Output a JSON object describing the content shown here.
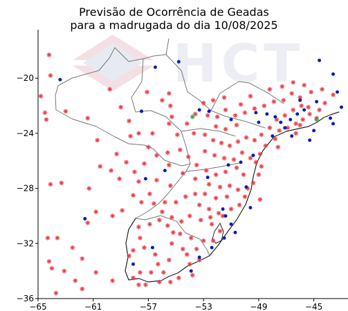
{
  "chart_data": {
    "type": "scatter",
    "title": "Previsão de Ocorrência de Geadas",
    "subtitle": "para a madrugada do dia 10/08/2025",
    "xlim": [
      -65,
      -43
    ],
    "ylim": [
      -36,
      -16.5
    ],
    "x_ticks": [
      -65,
      -61,
      -57,
      -53,
      -49,
      -45
    ],
    "y_ticks": [
      -20,
      -24,
      -28,
      -32,
      -36
    ],
    "grid": false,
    "watermark": "HCT",
    "colors": {
      "frost": "#e8404a",
      "no_frost": "#0a1fb0",
      "green": "#3fa046",
      "border": "#777777",
      "coast": "#222222"
    },
    "series": [
      {
        "marker": "red-asterisk",
        "points": [
          [
            -64.2,
            -18.3
          ],
          [
            -64.1,
            -19.8
          ],
          [
            -64.8,
            -21.3
          ],
          [
            -63.0,
            -22.4
          ],
          [
            -64.5,
            -22.5
          ],
          [
            -64.4,
            -23.0
          ],
          [
            -61.4,
            -22.9
          ],
          [
            -59.8,
            -20.8
          ],
          [
            -57.1,
            -21.0
          ],
          [
            -56.0,
            -21.6
          ],
          [
            -55.4,
            -22.0
          ],
          [
            -55.3,
            -22.8
          ],
          [
            -55.5,
            -23.3
          ],
          [
            -56.7,
            -24.0
          ],
          [
            -57.7,
            -24.0
          ],
          [
            -58.3,
            -24.2
          ],
          [
            -58.4,
            -23.1
          ],
          [
            -59.0,
            -22.1
          ],
          [
            -60.7,
            -24.5
          ],
          [
            -60.5,
            -26.4
          ],
          [
            -59.7,
            -26.7
          ],
          [
            -59.1,
            -27.3
          ],
          [
            -57.7,
            -27.5
          ],
          [
            -58.0,
            -26.8
          ],
          [
            -57.3,
            -26.2
          ],
          [
            -56.4,
            -25.6
          ],
          [
            -55.6,
            -25.4
          ],
          [
            -55.5,
            -26.3
          ],
          [
            -54.5,
            -26.9
          ],
          [
            -53.6,
            -27.3
          ],
          [
            -53.6,
            -28.4
          ],
          [
            -54.3,
            -28.6
          ],
          [
            -55.0,
            -29.0
          ],
          [
            -55.8,
            -29.0
          ],
          [
            -56.6,
            -29.1
          ],
          [
            -57.5,
            -29.0
          ],
          [
            -58.1,
            -28.5
          ],
          [
            -58.9,
            -29.6
          ],
          [
            -59.6,
            -30.0
          ],
          [
            -60.8,
            -29.7
          ],
          [
            -61.4,
            -30.5
          ],
          [
            -61.8,
            -33.1
          ],
          [
            -62.5,
            -32.3
          ],
          [
            -63.6,
            -31.6
          ],
          [
            -64.3,
            -31.6
          ],
          [
            -64.2,
            -33.3
          ],
          [
            -64.0,
            -33.8
          ],
          [
            -63.1,
            -34.0
          ],
          [
            -62.3,
            -34.7
          ],
          [
            -60.8,
            -34.1
          ],
          [
            -59.6,
            -34.7
          ],
          [
            -58.1,
            -34.5
          ],
          [
            -57.2,
            -35.0
          ],
          [
            -56.2,
            -34.8
          ],
          [
            -55.4,
            -34.8
          ],
          [
            -54.8,
            -34.5
          ],
          [
            -54.0,
            -33.5
          ],
          [
            -53.3,
            -33.2
          ],
          [
            -53.5,
            -32.4
          ],
          [
            -53.9,
            -31.6
          ],
          [
            -54.7,
            -31.3
          ],
          [
            -55.6,
            -30.7
          ],
          [
            -56.2,
            -30.3
          ],
          [
            -56.9,
            -30.6
          ],
          [
            -57.7,
            -30.8
          ],
          [
            -57.6,
            -31.6
          ],
          [
            -57.3,
            -32.3
          ],
          [
            -56.5,
            -32.8
          ],
          [
            -56.3,
            -33.5
          ],
          [
            -55.9,
            -34.1
          ],
          [
            -57.6,
            -34.1
          ],
          [
            -58.4,
            -32.9
          ],
          [
            -58.1,
            -32.5
          ],
          [
            -55.3,
            -32.0
          ],
          [
            -54.5,
            -32.4
          ],
          [
            -53.0,
            -31.8
          ],
          [
            -52.4,
            -30.6
          ],
          [
            -51.6,
            -30.0
          ],
          [
            -51.0,
            -29.5
          ],
          [
            -50.4,
            -29.2
          ],
          [
            -50.0,
            -28.6
          ],
          [
            -49.8,
            -28.0
          ],
          [
            -49.4,
            -27.6
          ],
          [
            -49.0,
            -27.0
          ],
          [
            -48.8,
            -26.4
          ],
          [
            -48.9,
            -25.5
          ],
          [
            -48.5,
            -24.9
          ],
          [
            -47.8,
            -24.4
          ],
          [
            -47.5,
            -23.8
          ],
          [
            -46.9,
            -23.6
          ],
          [
            -46.3,
            -23.3
          ],
          [
            -45.8,
            -23.0
          ],
          [
            -45.3,
            -22.6
          ],
          [
            -44.6,
            -22.3
          ],
          [
            -44.2,
            -21.8
          ],
          [
            -43.6,
            -21.2
          ],
          [
            -44.4,
            -20.8
          ],
          [
            -45.2,
            -21.0
          ],
          [
            -46.0,
            -21.4
          ],
          [
            -46.6,
            -21.1
          ],
          [
            -47.2,
            -21.6
          ],
          [
            -47.9,
            -21.7
          ],
          [
            -48.6,
            -22.0
          ],
          [
            -49.3,
            -22.2
          ],
          [
            -50.0,
            -22.5
          ],
          [
            -50.7,
            -22.7
          ],
          [
            -51.4,
            -22.3
          ],
          [
            -52.0,
            -22.8
          ],
          [
            -52.7,
            -22.7
          ],
          [
            -53.6,
            -22.6
          ],
          [
            -54.2,
            -23.3
          ],
          [
            -53.7,
            -24.0
          ],
          [
            -52.9,
            -24.1
          ],
          [
            -52.3,
            -24.5
          ],
          [
            -51.7,
            -24.7
          ],
          [
            -51.1,
            -24.9
          ],
          [
            -50.5,
            -24.6
          ],
          [
            -49.9,
            -24.3
          ],
          [
            -49.3,
            -24.5
          ],
          [
            -48.8,
            -24.1
          ],
          [
            -48.2,
            -23.6
          ],
          [
            -47.7,
            -23.0
          ],
          [
            -47.1,
            -22.7
          ],
          [
            -46.5,
            -22.3
          ],
          [
            -45.9,
            -22.0
          ],
          [
            -45.4,
            -22.1
          ],
          [
            -46.3,
            -24.0
          ],
          [
            -50.6,
            -23.4
          ],
          [
            -51.4,
            -23.7
          ],
          [
            -52.1,
            -23.5
          ],
          [
            -52.9,
            -25.3
          ],
          [
            -52.2,
            -25.6
          ],
          [
            -51.5,
            -25.8
          ],
          [
            -50.8,
            -25.9
          ],
          [
            -50.2,
            -25.4
          ],
          [
            -49.6,
            -25.8
          ],
          [
            -49.2,
            -26.1
          ],
          [
            -50.6,
            -26.5
          ],
          [
            -51.4,
            -26.8
          ],
          [
            -52.1,
            -27.0
          ],
          [
            -52.8,
            -26.7
          ],
          [
            -53.5,
            -26.3
          ],
          [
            -54.1,
            -25.7
          ],
          [
            -54.7,
            -25.2
          ],
          [
            -52.6,
            -27.7
          ],
          [
            -51.8,
            -27.9
          ],
          [
            -51.1,
            -27.8
          ],
          [
            -50.5,
            -28.1
          ],
          [
            -51.3,
            -28.6
          ],
          [
            -52.1,
            -28.7
          ],
          [
            -52.9,
            -28.4
          ],
          [
            -53.3,
            -29.2
          ],
          [
            -52.6,
            -29.5
          ],
          [
            -51.9,
            -29.8
          ],
          [
            -52.5,
            -30.1
          ],
          [
            -53.2,
            -30.3
          ],
          [
            -54.0,
            -30.0
          ],
          [
            -54.6,
            -30.4
          ],
          [
            -55.3,
            -30.1
          ],
          [
            -56.0,
            -29.7
          ],
          [
            -55.2,
            -31.2
          ],
          [
            -54.2,
            -32.8
          ],
          [
            -52.3,
            -31.8
          ],
          [
            -51.8,
            -31.1
          ],
          [
            -53.8,
            -34.3
          ],
          [
            -56.8,
            -34.1
          ],
          [
            -55.5,
            -33.2
          ],
          [
            -55.4,
            -27.8
          ],
          [
            -56.4,
            -27.4
          ],
          [
            -56.9,
            -28.4
          ],
          [
            -58.6,
            -26.1
          ],
          [
            -59.3,
            -25.5
          ],
          [
            -57.0,
            -25.0
          ],
          [
            -54.9,
            -24.1
          ],
          [
            -53.0,
            -21.8
          ],
          [
            -52.3,
            -21.6
          ],
          [
            -51.5,
            -21.4
          ],
          [
            -50.3,
            -21.9
          ],
          [
            -49.6,
            -21.3
          ],
          [
            -48.2,
            -20.8
          ],
          [
            -47.3,
            -20.6
          ],
          [
            -46.5,
            -20.3
          ],
          [
            -45.7,
            -20.5
          ],
          [
            -55.5,
            -21.1
          ],
          [
            -63.3,
            -27.6
          ],
          [
            -64.1,
            -27.7
          ],
          [
            -61.3,
            -28.0
          ],
          [
            -57.7,
            -35.0
          ],
          [
            -61.8,
            -35.3
          ],
          [
            -63.7,
            -35.6
          ],
          [
            -50.1,
            -27.0
          ],
          [
            -48.9,
            -28.8
          ],
          [
            -47.6,
            -25.0
          ],
          [
            -46.0,
            -23.4
          ],
          [
            -44.8,
            -22.9
          ]
        ]
      },
      {
        "marker": "blue-dot",
        "points": [
          [
            -56.5,
            -19.2
          ],
          [
            -54.8,
            -18.8
          ],
          [
            -44.6,
            -18.7
          ],
          [
            -43.6,
            -19.7
          ],
          [
            -63.4,
            -20.1
          ],
          [
            -57.5,
            -22.4
          ],
          [
            -49.2,
            -22.5
          ],
          [
            -48.4,
            -22.6
          ],
          [
            -47.8,
            -22.8
          ],
          [
            -47.4,
            -23.2
          ],
          [
            -46.7,
            -23.0
          ],
          [
            -46.2,
            -22.6
          ],
          [
            -45.7,
            -22.3
          ],
          [
            -47.1,
            -23.6
          ],
          [
            -46.6,
            -24.2
          ],
          [
            -48.0,
            -24.2
          ],
          [
            -49.0,
            -23.2
          ],
          [
            -51.0,
            -23.0
          ],
          [
            -52.6,
            -22.4
          ],
          [
            -53.3,
            -22.3
          ],
          [
            -46.0,
            -21.6
          ],
          [
            -43.3,
            -21.0
          ],
          [
            -43.0,
            -22.1
          ],
          [
            -43.8,
            -22.9
          ],
          [
            -45.0,
            -23.8
          ],
          [
            -45.3,
            -24.5
          ],
          [
            -49.4,
            -25.6
          ],
          [
            -50.3,
            -26.1
          ],
          [
            -51.2,
            -26.3
          ],
          [
            -55.8,
            -26.7
          ],
          [
            -57.2,
            -27.3
          ],
          [
            -52.7,
            -27.2
          ],
          [
            -51.6,
            -29.5
          ],
          [
            -51.4,
            -30.0
          ],
          [
            -51.0,
            -30.6
          ],
          [
            -50.7,
            -31.2
          ],
          [
            -51.5,
            -31.6
          ],
          [
            -52.4,
            -32.3
          ],
          [
            -53.3,
            -33.0
          ],
          [
            -53.9,
            -34.0
          ],
          [
            -56.7,
            -32.3
          ],
          [
            -58.1,
            -33.5
          ],
          [
            -61.6,
            -30.2
          ],
          [
            -49.6,
            -29.4
          ],
          [
            -49.9,
            -27.9
          ],
          [
            -43.6,
            -23.3
          ],
          [
            -44.8,
            -21.7
          ]
        ]
      },
      {
        "marker": "green-asterisk",
        "points": [
          [
            -53.8,
            -22.8
          ],
          [
            -44.8,
            -23.0
          ]
        ]
      }
    ]
  }
}
